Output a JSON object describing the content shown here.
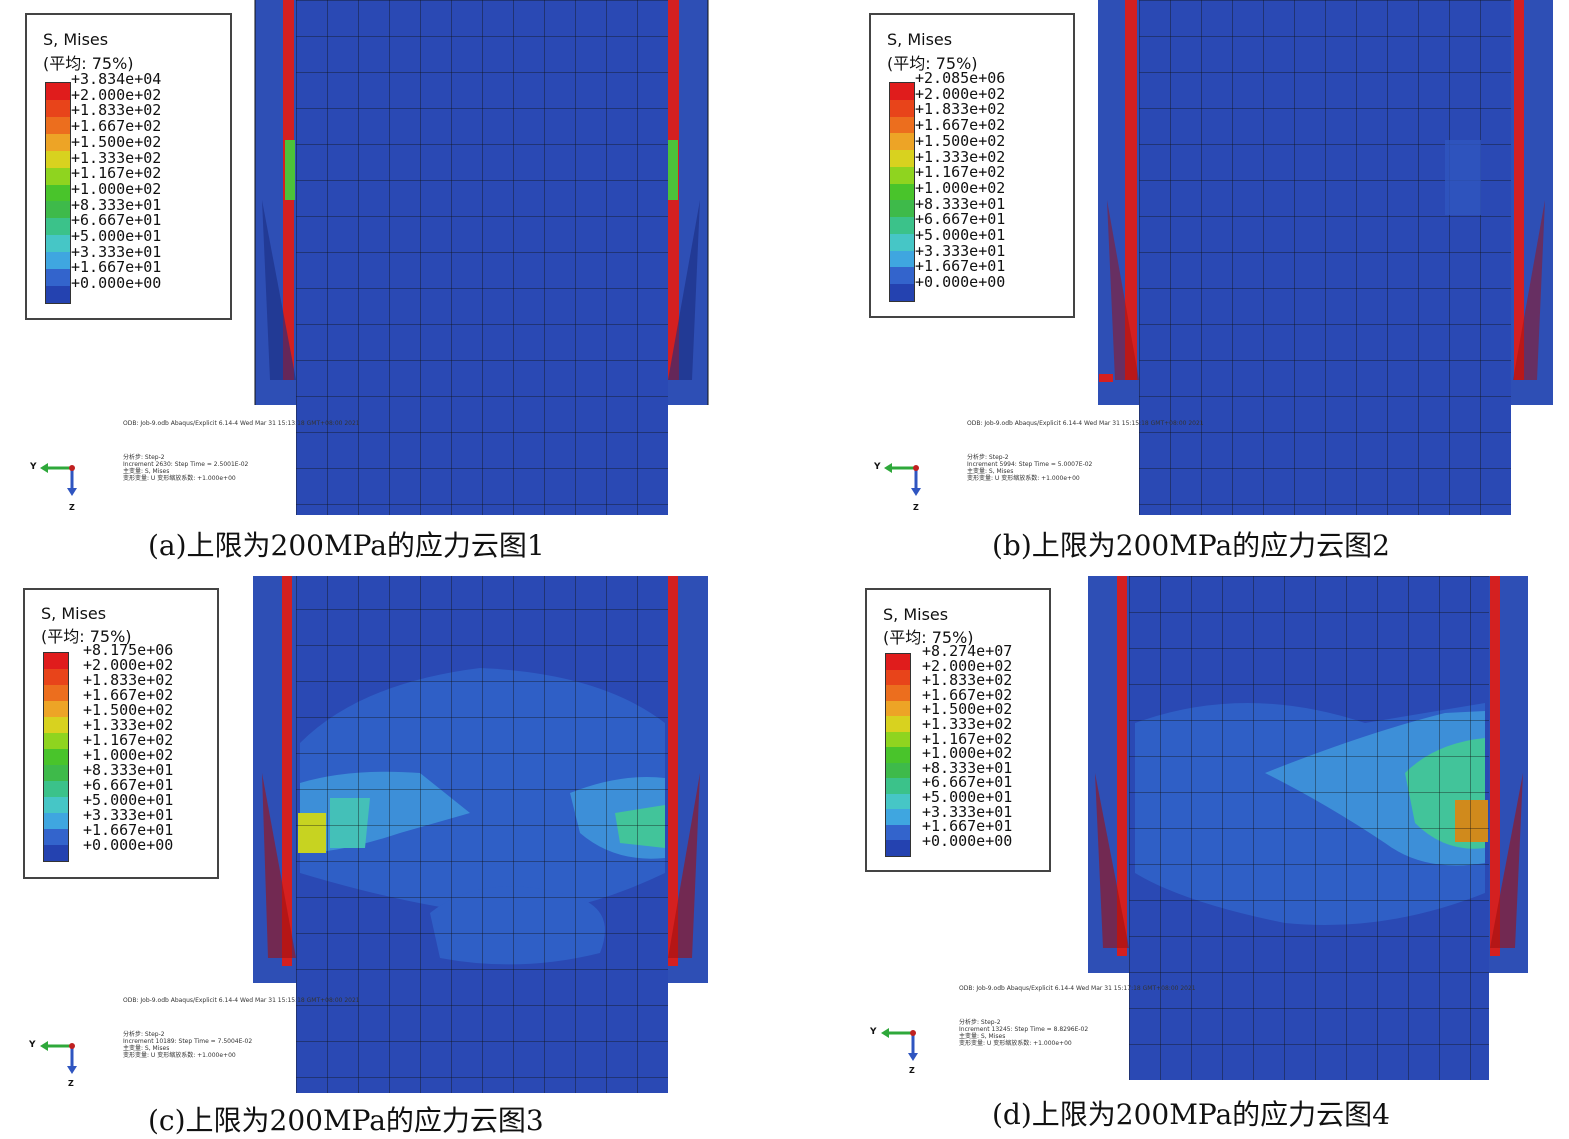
{
  "legend_common": {
    "title": "S, Mises",
    "average": "(平均: 75%)",
    "values": [
      "+2.000e+02",
      "+1.833e+02",
      "+1.667e+02",
      "+1.500e+02",
      "+1.333e+02",
      "+1.167e+02",
      "+1.000e+02",
      "+8.333e+01",
      "+6.667e+01",
      "+5.000e+01",
      "+3.333e+01",
      "+1.667e+01",
      "+0.000e+00"
    ],
    "colors": [
      "#e01c1c",
      "#e8441a",
      "#ec6e1e",
      "#eda426",
      "#d8d21f",
      "#8fd41f",
      "#49c42b",
      "#3eba4a",
      "#3bc28a",
      "#46c6c6",
      "#3fa6e0",
      "#3364cc",
      "#2442b0"
    ]
  },
  "axis": {
    "y": "Y",
    "z": "Z"
  },
  "panels": [
    {
      "caption": "(a)上限为200MPa的应力云图1",
      "max": "+3.834e+04",
      "odb": "ODB: Job-9.odb    Abaqus/Explicit 6.14-4    Wed Mar 31 15:13:18 GMT+08:00 2021",
      "step": "分析步: Step-2",
      "increment": "Increment     2630: Step Time =    2.5001E-02",
      "primary": "主变量: S, Mises",
      "deformed": "变形变量: U   变形缩放系数: +1.000e+00"
    },
    {
      "caption": "(b)上限为200MPa的应力云图2",
      "max": "+2.085e+06",
      "odb": "ODB: Job-9.odb    Abaqus/Explicit 6.14-4    Wed Mar 31 15:15:18 GMT+08:00 2021",
      "step": "分析步: Step-2",
      "increment": "Increment     5994: Step Time =    5.0007E-02",
      "primary": "主变量: S, Mises",
      "deformed": "变形变量: U   变形缩放系数: +1.000e+00"
    },
    {
      "caption": "(c)上限为200MPa的应力云图3",
      "max": "+8.175e+06",
      "odb": "ODB: Job-9.odb    Abaqus/Explicit 6.14-4    Wed Mar 31 15:15:18 GMT+08:00 2021",
      "step": "分析步: Step-2",
      "increment": "Increment    10189: Step Time =    7.5004E-02",
      "primary": "主变量: S, Mises",
      "deformed": "变形变量: U   变形缩放系数: +1.000e+00"
    },
    {
      "caption": "(d)上限为200MPa的应力云图4",
      "max": "+8.274e+07",
      "odb": "ODB: Job-9.odb    Abaqus/Explicit 6.14-4    Wed Mar 31 15:17:18 GMT+08:00 2021",
      "step": "分析步: Step-2",
      "increment": "Increment    13245: Step Time =    8.8296E-02",
      "primary": "主变量: S, Mises",
      "deformed": "变形变量: U   变形缩放系数: +1.000e+00"
    }
  ]
}
